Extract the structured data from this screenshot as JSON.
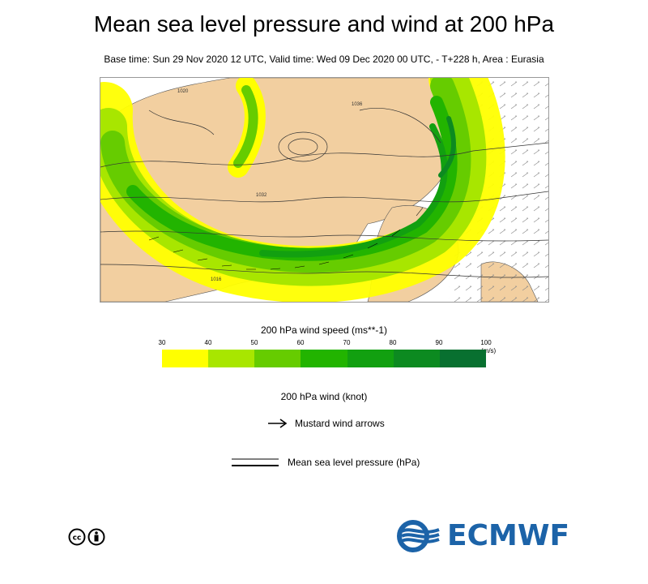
{
  "header": {
    "title": "Mean sea level pressure and wind at 200 hPa",
    "subtitle": "Base time: Sun 29 Nov 2020 12 UTC, Valid time: Wed 09 Dec 2020 00 UTC, - T+228 h, Area : Eurasia"
  },
  "map": {
    "isobar_labels": [
      "1020",
      "1036",
      "1032",
      "1016"
    ],
    "colors": {
      "land": "#f2cfa0",
      "sea": "#ffffff",
      "contour": "#333333"
    }
  },
  "colorbar": {
    "title": "200 hPa wind speed (ms**-1)",
    "ticks": [
      "30",
      "40",
      "50",
      "60",
      "70",
      "80",
      "90",
      "100"
    ],
    "unit": "(m/s)",
    "colors": [
      "#ffff00",
      "#a8e600",
      "#66cc00",
      "#22b400",
      "#12a010",
      "#0c8a20",
      "#087030"
    ]
  },
  "legend": {
    "wind_title": "200 hPa wind (knot)",
    "arrow_label": "Mustard wind arrows",
    "msl_label": "Mean sea level pressure (hPa)"
  },
  "footer": {
    "license_icon": "cc-by-icon",
    "logo_text": "ECMWF",
    "logo_color": "#1c63a8"
  }
}
